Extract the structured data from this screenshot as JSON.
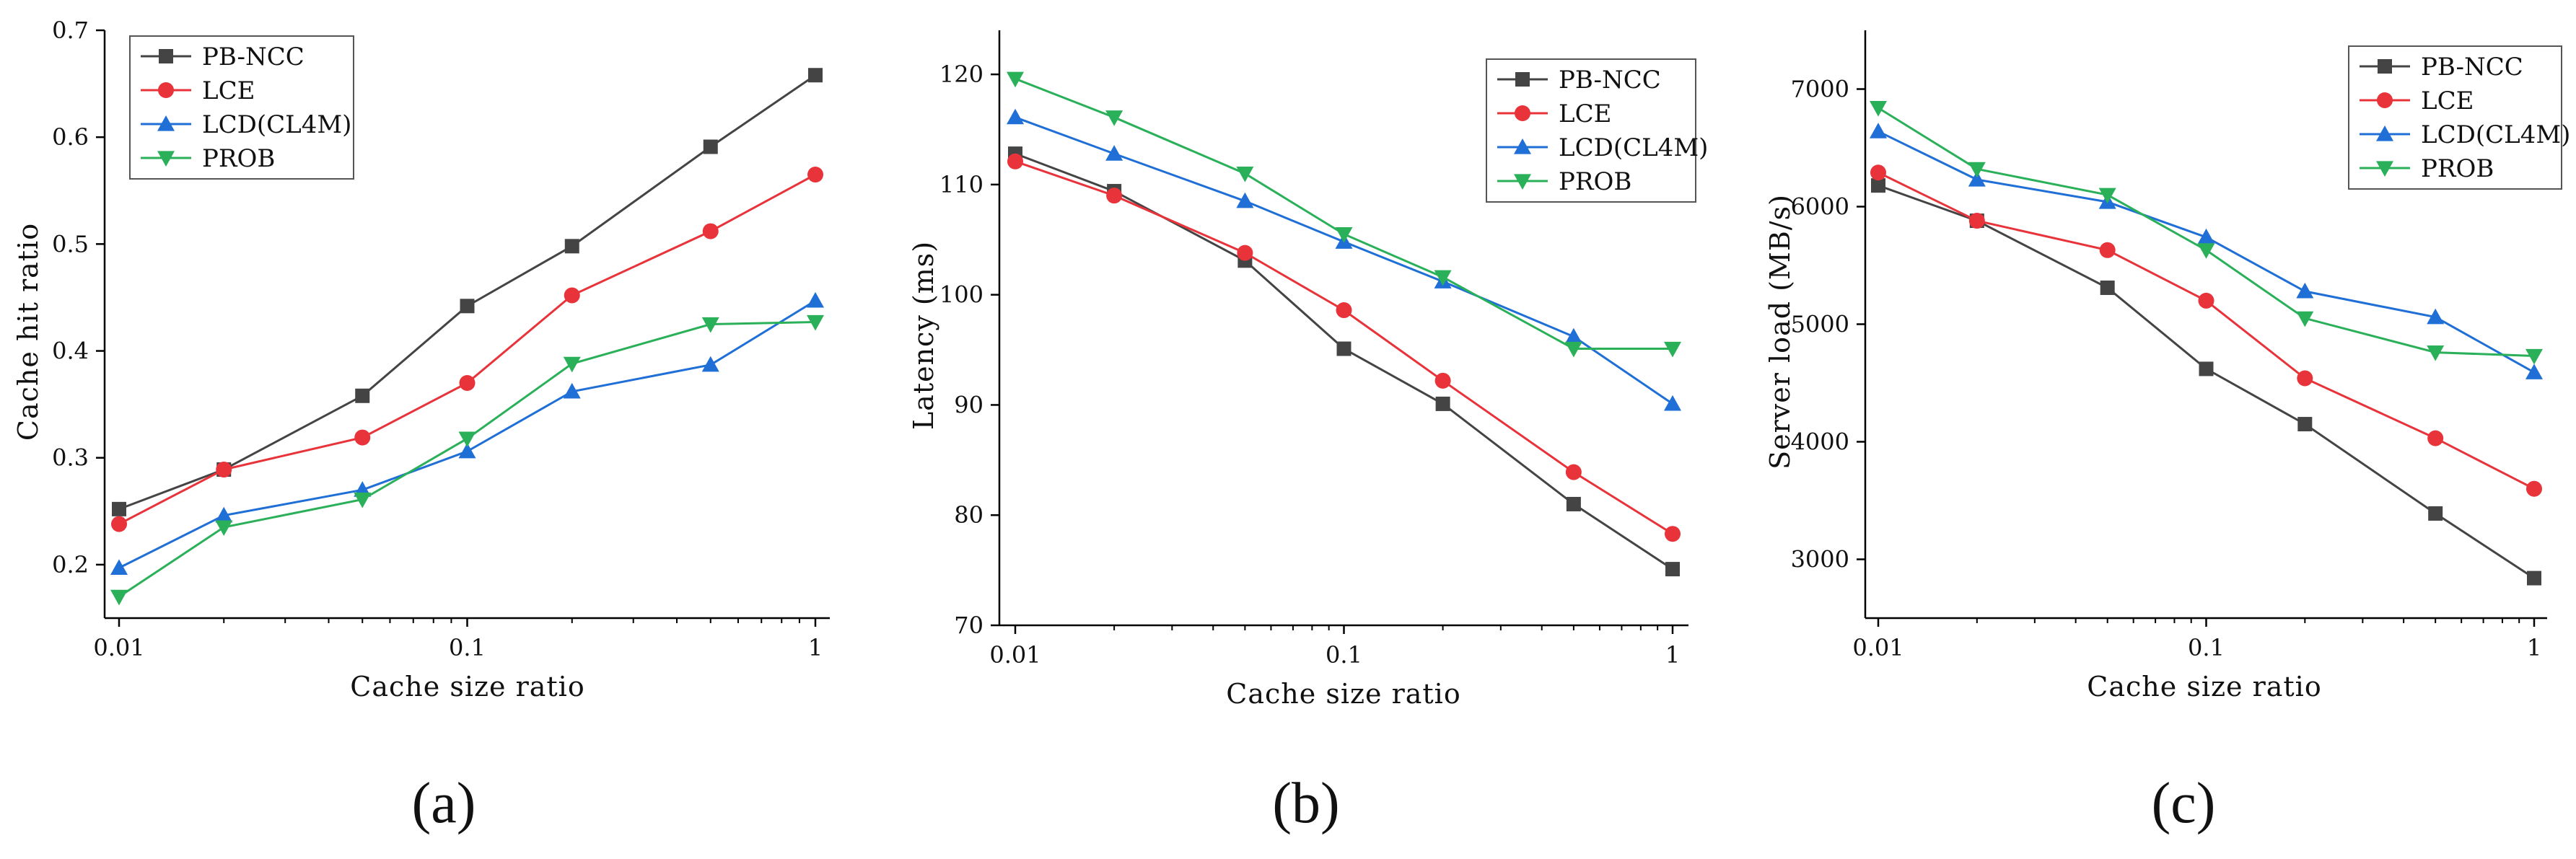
{
  "figure": {
    "captions": [
      "(a)",
      "(b)",
      "(c)"
    ]
  },
  "series_style": {
    "PB-NCC": {
      "color": "#444444",
      "marker": "square"
    },
    "LCE": {
      "color": "#e8333a",
      "marker": "circle"
    },
    "LCD(CL4M)": {
      "color": "#1f6fd6",
      "marker": "triangle-up"
    },
    "PROB": {
      "color": "#2bb05a",
      "marker": "triangle-down"
    }
  },
  "chart_data": [
    {
      "type": "line",
      "panel": "(a)",
      "title": "",
      "xlabel": "Cache size ratio",
      "ylabel": "Cache hit ratio",
      "xscale": "log",
      "xlim": [
        0.01,
        1
      ],
      "ylim": [
        0.15,
        0.7
      ],
      "xticks": [
        {
          "v": 0.01,
          "label": "0.01"
        },
        {
          "v": 0.1,
          "label": "0.1"
        },
        {
          "v": 1,
          "label": "1"
        }
      ],
      "yticks": [
        {
          "v": 0.2,
          "label": "0.2"
        },
        {
          "v": 0.3,
          "label": "0.3"
        },
        {
          "v": 0.4,
          "label": "0.4"
        },
        {
          "v": 0.5,
          "label": "0.5"
        },
        {
          "v": 0.6,
          "label": "0.6"
        },
        {
          "v": 0.7,
          "label": "0.7"
        }
      ],
      "legend_position": "top-left",
      "x": [
        0.01,
        0.02,
        0.05,
        0.1,
        0.2,
        0.5,
        1
      ],
      "series": [
        {
          "name": "PB-NCC",
          "values": [
            0.252,
            0.289,
            0.358,
            0.442,
            0.498,
            0.591,
            0.658
          ]
        },
        {
          "name": "LCE",
          "values": [
            0.238,
            0.289,
            0.319,
            0.37,
            0.452,
            0.512,
            0.565
          ]
        },
        {
          "name": "LCD(CL4M)",
          "values": [
            0.197,
            0.246,
            0.27,
            0.306,
            0.362,
            0.387,
            0.447
          ]
        },
        {
          "name": "PROB",
          "values": [
            0.17,
            0.235,
            0.261,
            0.318,
            0.388,
            0.425,
            0.427
          ]
        }
      ]
    },
    {
      "type": "line",
      "panel": "(b)",
      "title": "",
      "xlabel": "Cache size ratio",
      "ylabel": "Latency (ms)",
      "xscale": "log",
      "xlim": [
        0.01,
        1
      ],
      "ylim": [
        70,
        124
      ],
      "xticks": [
        {
          "v": 0.01,
          "label": "0.01"
        },
        {
          "v": 0.1,
          "label": "0.1"
        },
        {
          "v": 1,
          "label": "1"
        }
      ],
      "yticks": [
        {
          "v": 70,
          "label": "70"
        },
        {
          "v": 80,
          "label": "80"
        },
        {
          "v": 90,
          "label": "90"
        },
        {
          "v": 100,
          "label": "100"
        },
        {
          "v": 110,
          "label": "110"
        },
        {
          "v": 120,
          "label": "120"
        }
      ],
      "legend_position": "top-right",
      "x": [
        0.01,
        0.02,
        0.05,
        0.1,
        0.2,
        0.5,
        1
      ],
      "series": [
        {
          "name": "PB-NCC",
          "values": [
            112.8,
            109.4,
            103.1,
            95.1,
            90.1,
            81.0,
            75.1
          ]
        },
        {
          "name": "LCE",
          "values": [
            112.1,
            109.0,
            103.8,
            98.6,
            92.2,
            83.9,
            78.3
          ]
        },
        {
          "name": "LCD(CL4M)",
          "values": [
            116.1,
            112.8,
            108.5,
            104.8,
            101.2,
            96.2,
            90.1
          ]
        },
        {
          "name": "PROB",
          "values": [
            119.6,
            116.1,
            111.0,
            105.5,
            101.6,
            95.1,
            95.1
          ]
        }
      ]
    },
    {
      "type": "line",
      "panel": "(c)",
      "title": "",
      "xlabel": "Cache size ratio",
      "ylabel": "Server load (MB/s)",
      "xscale": "log",
      "xlim": [
        0.01,
        1
      ],
      "ylim": [
        2500,
        7500
      ],
      "xticks": [
        {
          "v": 0.01,
          "label": "0.01"
        },
        {
          "v": 0.1,
          "label": "0.1"
        },
        {
          "v": 1,
          "label": "1"
        }
      ],
      "yticks": [
        {
          "v": 3000,
          "label": "3000"
        },
        {
          "v": 4000,
          "label": "4000"
        },
        {
          "v": 5000,
          "label": "5000"
        },
        {
          "v": 6000,
          "label": "6000"
        },
        {
          "v": 7000,
          "label": "7000"
        }
      ],
      "legend_position": "top-right",
      "x": [
        0.01,
        0.02,
        0.05,
        0.1,
        0.2,
        0.5,
        1
      ],
      "series": [
        {
          "name": "PB-NCC",
          "values": [
            6180,
            5880,
            5310,
            4620,
            4150,
            3390,
            2840
          ]
        },
        {
          "name": "LCE",
          "values": [
            6290,
            5880,
            5630,
            5200,
            4540,
            4030,
            3600
          ]
        },
        {
          "name": "LCD(CL4M)",
          "values": [
            6640,
            6230,
            6040,
            5740,
            5280,
            5060,
            4590
          ]
        },
        {
          "name": "PROB",
          "values": [
            6840,
            6320,
            6100,
            5630,
            5050,
            4760,
            4730
          ]
        }
      ]
    }
  ]
}
